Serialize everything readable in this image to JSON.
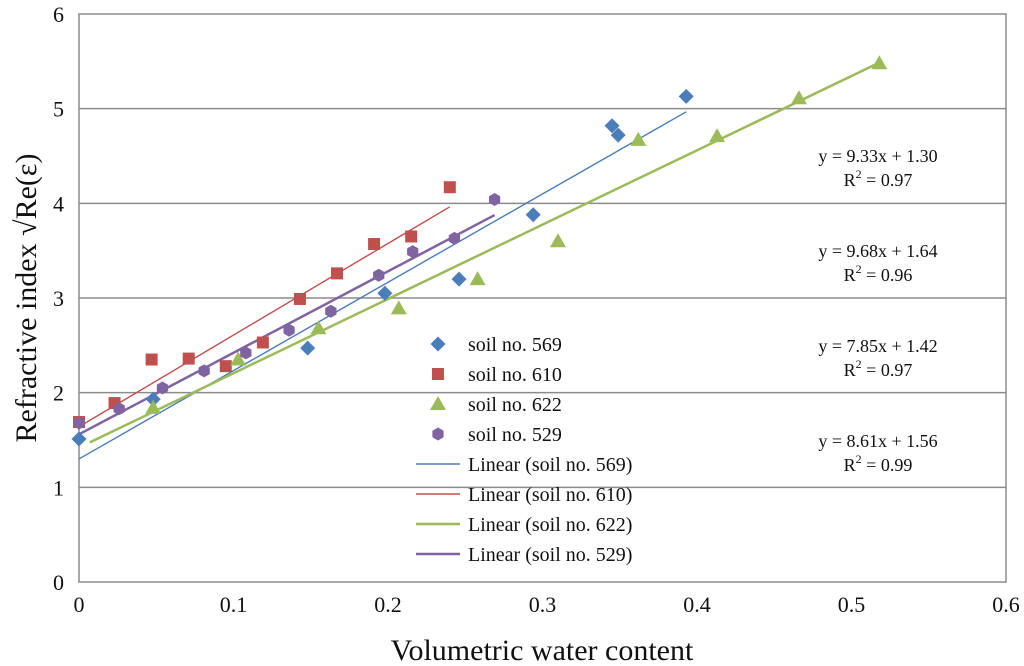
{
  "chart_data": {
    "type": "scatter",
    "title": "",
    "xlabel": "Volumetric water content",
    "ylabel": "Refractive index √Re(ε)",
    "xlim": [
      0,
      0.6
    ],
    "ylim": [
      0,
      6
    ],
    "x_ticks": [
      0,
      0.1,
      0.2,
      0.3,
      0.4,
      0.5,
      0.6
    ],
    "x_tick_labels": [
      "0",
      "0.1",
      "0.2",
      "0.3",
      "0.4",
      "0.5",
      "0.6"
    ],
    "y_ticks": [
      0,
      1,
      2,
      3,
      4,
      5,
      6
    ],
    "y_tick_labels": [
      "0",
      "1",
      "2",
      "3",
      "4",
      "5",
      "6"
    ],
    "grid": "horizontal",
    "legend_position": "center",
    "series": [
      {
        "name": "soil no. 569",
        "marker": "diamond",
        "color": "#4a7ebb",
        "points": [
          [
            0.0,
            1.51
          ],
          [
            0.048,
            1.93
          ],
          [
            0.148,
            2.47
          ],
          [
            0.198,
            3.05
          ],
          [
            0.246,
            3.2
          ],
          [
            0.294,
            3.88
          ],
          [
            0.345,
            4.82
          ],
          [
            0.349,
            4.72
          ],
          [
            0.393,
            5.13
          ]
        ]
      },
      {
        "name": "soil no. 610",
        "marker": "square",
        "color": "#c0504d",
        "points": [
          [
            0.0,
            1.69
          ],
          [
            0.023,
            1.89
          ],
          [
            0.047,
            2.35
          ],
          [
            0.071,
            2.36
          ],
          [
            0.095,
            2.28
          ],
          [
            0.119,
            2.53
          ],
          [
            0.143,
            2.99
          ],
          [
            0.167,
            3.26
          ],
          [
            0.191,
            3.57
          ],
          [
            0.215,
            3.65
          ],
          [
            0.24,
            4.17
          ]
        ]
      },
      {
        "name": "soil no. 622",
        "marker": "triangle",
        "color": "#9bbb59",
        "points": [
          [
            0.048,
            1.84
          ],
          [
            0.103,
            2.35
          ],
          [
            0.155,
            2.68
          ],
          [
            0.207,
            2.89
          ],
          [
            0.258,
            3.2
          ],
          [
            0.31,
            3.6
          ],
          [
            0.362,
            4.67
          ],
          [
            0.413,
            4.71
          ],
          [
            0.466,
            5.11
          ],
          [
            0.518,
            5.48
          ]
        ]
      },
      {
        "name": "soil no. 529",
        "marker": "hexagon",
        "color": "#8064a2",
        "points": [
          [
            0.0,
            1.68
          ],
          [
            0.026,
            1.83
          ],
          [
            0.054,
            2.05
          ],
          [
            0.081,
            2.23
          ],
          [
            0.108,
            2.42
          ],
          [
            0.136,
            2.66
          ],
          [
            0.163,
            2.86
          ],
          [
            0.194,
            3.24
          ],
          [
            0.216,
            3.49
          ],
          [
            0.243,
            3.63
          ],
          [
            0.269,
            4.04
          ]
        ]
      }
    ],
    "trendlines": [
      {
        "name": "Linear (soil no. 569)",
        "color": "#4a7ebb",
        "slope": 9.33,
        "intercept": 1.3,
        "x_range": [
          0,
          0.393
        ]
      },
      {
        "name": "Linear (soil no. 610)",
        "color": "#c0504d",
        "slope": 9.68,
        "intercept": 1.64,
        "x_range": [
          0,
          0.24
        ]
      },
      {
        "name": "Linear (soil no. 622)",
        "color": "#9bbb59",
        "slope": 7.85,
        "intercept": 1.42,
        "x_range": [
          0.007,
          0.52
        ]
      },
      {
        "name": "Linear (soil no. 529)",
        "color": "#8064a2",
        "slope": 8.61,
        "intercept": 1.56,
        "x_range": [
          0,
          0.269
        ]
      }
    ],
    "annotations": [
      {
        "equation": "y = 9.33x + 1.30",
        "r2_prefix": "R",
        "r2_sup": "2",
        "r2_value": " = 0.97"
      },
      {
        "equation": "y = 9.68x + 1.64",
        "r2_prefix": "R",
        "r2_sup": "2",
        "r2_value": " = 0.96"
      },
      {
        "equation": "y = 7.85x + 1.42",
        "r2_prefix": "R",
        "r2_sup": "2",
        "r2_value": " = 0.97"
      },
      {
        "equation": "y = 8.61x + 1.56",
        "r2_prefix": "R",
        "r2_sup": "2",
        "r2_value": " = 0.99"
      }
    ]
  }
}
